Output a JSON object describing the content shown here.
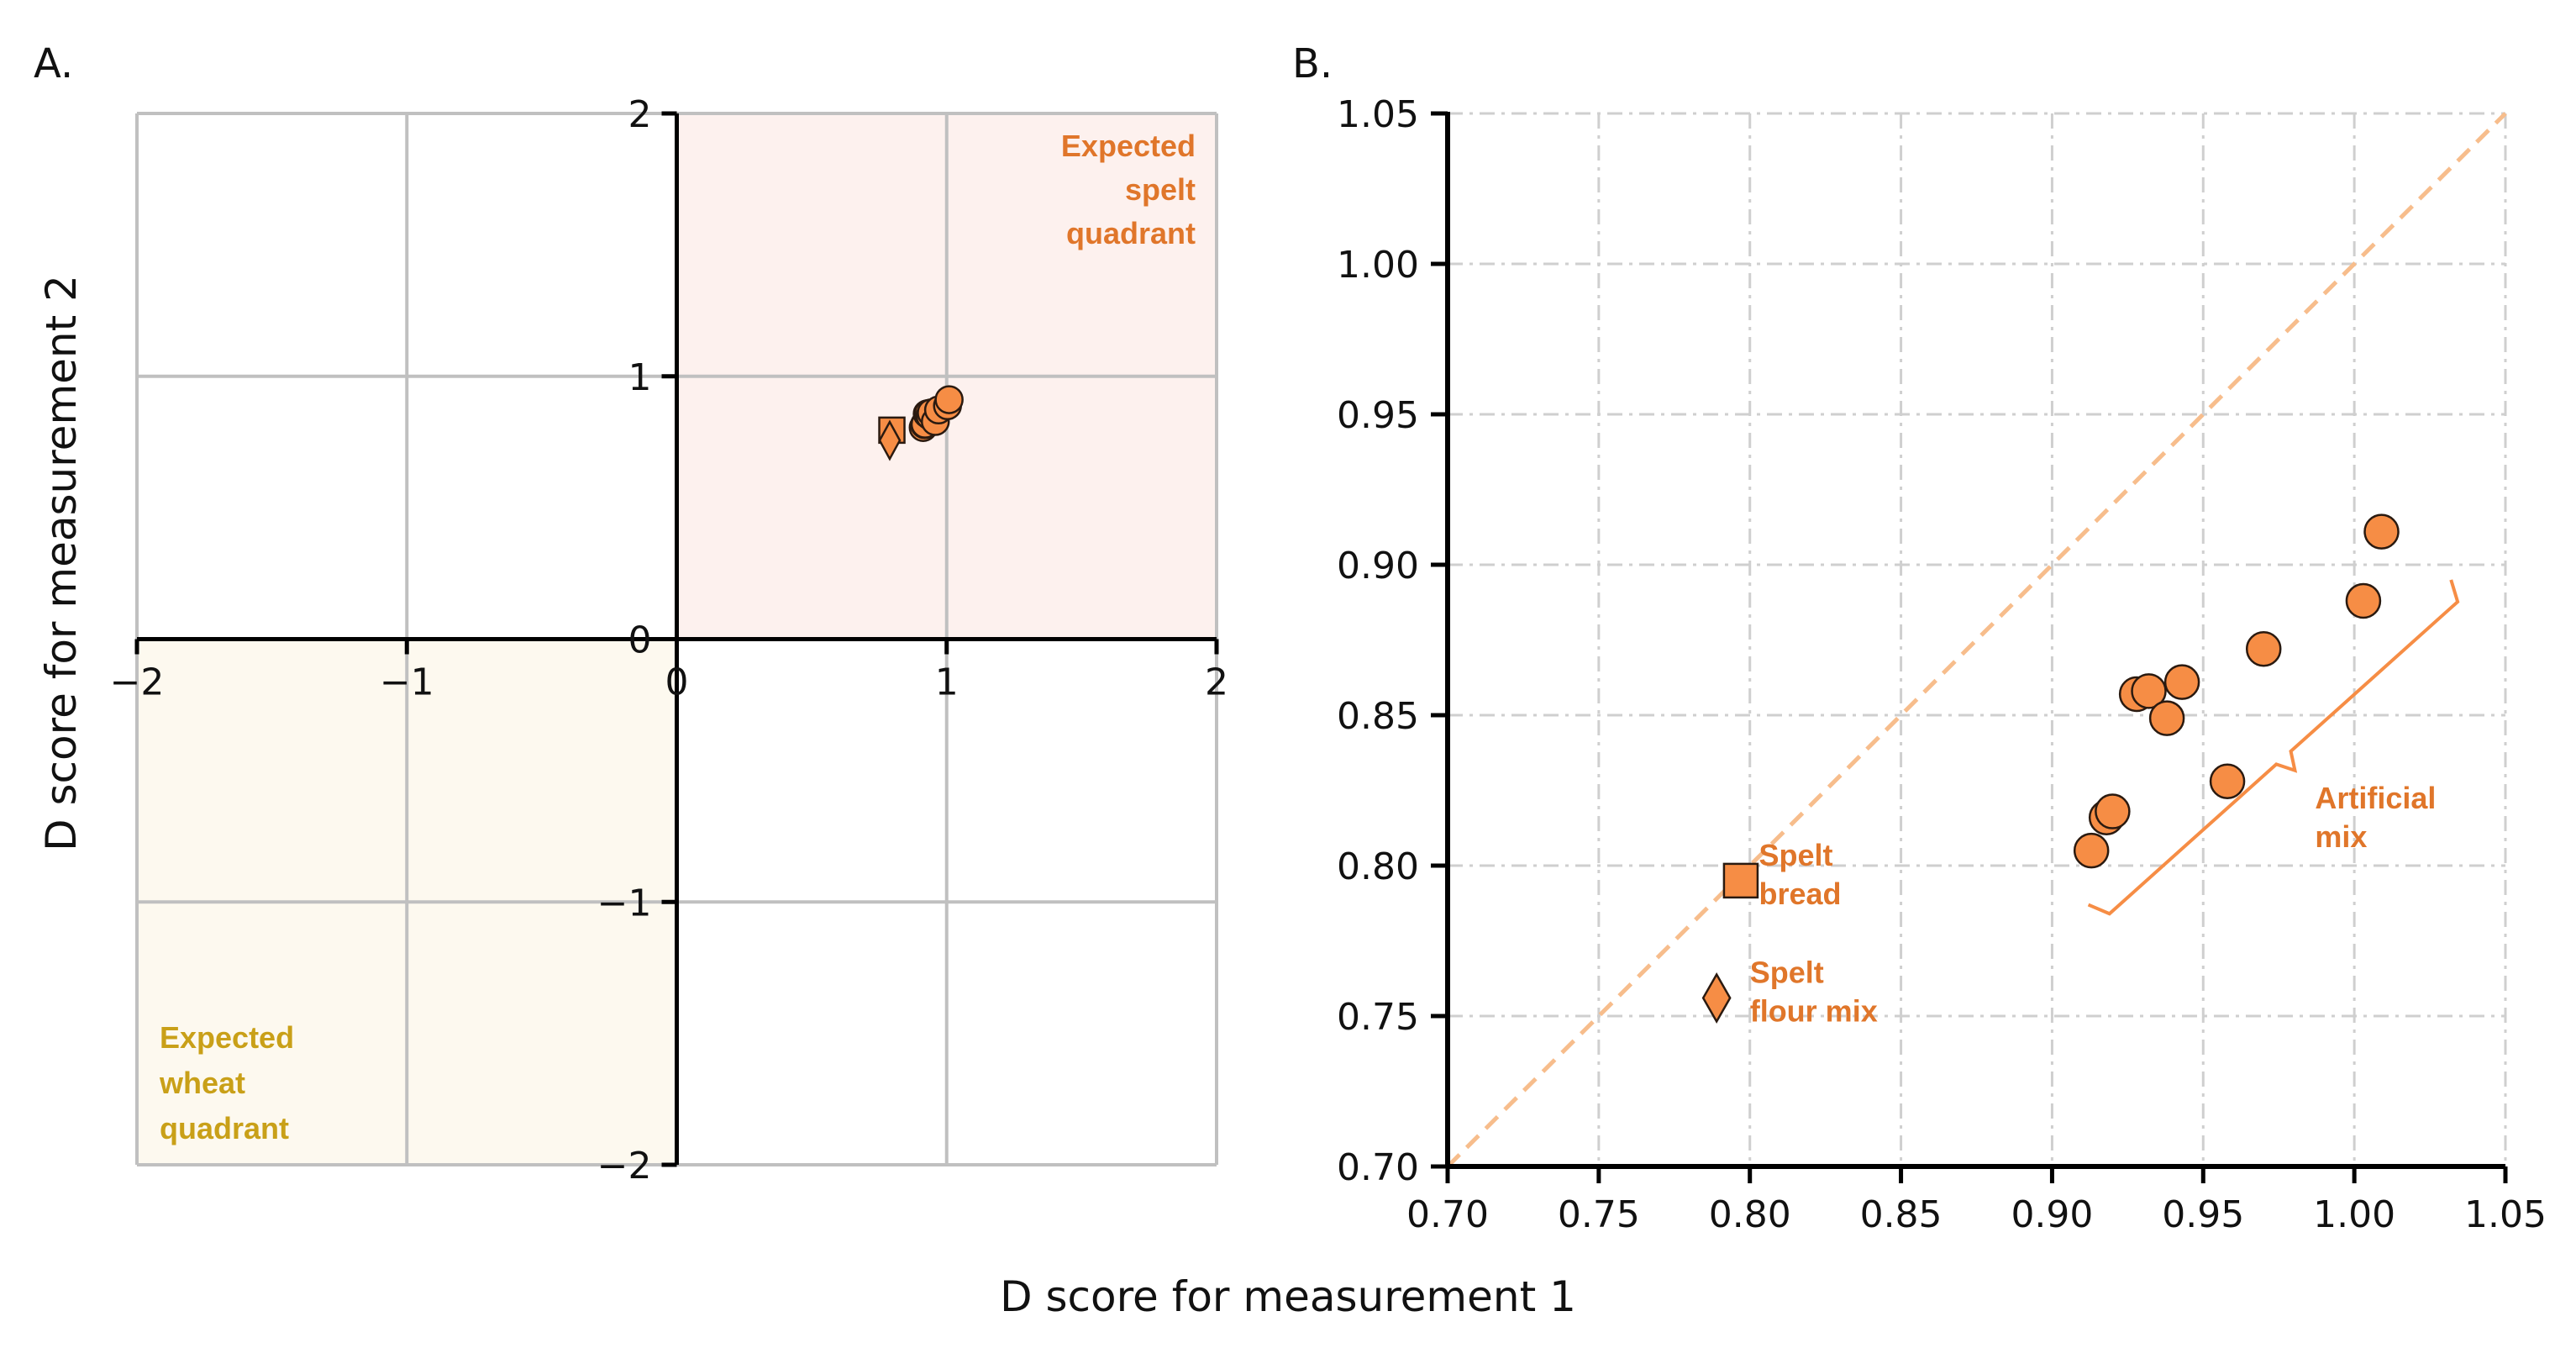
{
  "figure": {
    "xlabel": "D score for measurement 1",
    "ylabel": "D score for measurement 2"
  },
  "colors": {
    "marker_fill": "#F68D45",
    "marker_edge": "#2a1a10",
    "spelt_text": "#E0762A",
    "wheat_text": "#C9A018",
    "spelt_shade": "#FDF1EE",
    "wheat_shade": "#FDF9EF",
    "grid": "#c0c0c0",
    "diagonal": "#F7BD8C"
  },
  "chart_data": [
    {
      "panel": "A.",
      "type": "scatter",
      "xlim": [
        -2,
        2
      ],
      "ylim": [
        -2,
        2
      ],
      "xticks": [
        -2,
        -1,
        0,
        1,
        2
      ],
      "yticks": [
        -2,
        -1,
        0,
        1,
        2
      ],
      "grid": true,
      "quadrants": [
        {
          "name": "spelt",
          "lines": [
            "Expected",
            "spelt",
            "quadrant"
          ],
          "x_range": [
            0,
            2
          ],
          "y_range": [
            0,
            2
          ],
          "label_position": "top-right"
        },
        {
          "name": "wheat",
          "lines": [
            "Expected",
            "wheat",
            "quadrant"
          ],
          "x_range": [
            -2,
            0
          ],
          "y_range": [
            -2,
            0
          ],
          "label_position": "bottom-left"
        }
      ],
      "series": [
        {
          "name": "Spelt bread",
          "marker": "square",
          "points": [
            [
              0.797,
              0.795
            ]
          ]
        },
        {
          "name": "Spelt flour mix",
          "marker": "diamond",
          "points": [
            [
              0.789,
              0.756
            ]
          ]
        },
        {
          "name": "Artificial mix",
          "marker": "circle",
          "points": [
            [
              0.913,
              0.805
            ],
            [
              0.918,
              0.816
            ],
            [
              0.92,
              0.818
            ],
            [
              0.928,
              0.857
            ],
            [
              0.932,
              0.858
            ],
            [
              0.938,
              0.849
            ],
            [
              0.943,
              0.861
            ],
            [
              0.958,
              0.828
            ],
            [
              0.97,
              0.872
            ],
            [
              1.003,
              0.888
            ],
            [
              1.009,
              0.911
            ]
          ]
        }
      ]
    },
    {
      "panel": "B.",
      "type": "scatter",
      "xlim": [
        0.7,
        1.05
      ],
      "ylim": [
        0.7,
        1.05
      ],
      "xticks": [
        "0.70",
        "0.75",
        "0.80",
        "0.85",
        "0.90",
        "0.95",
        "1.00",
        "1.05"
      ],
      "yticks": [
        "0.70",
        "0.75",
        "0.80",
        "0.85",
        "0.90",
        "0.95",
        "1.00",
        "1.05"
      ],
      "grid": true,
      "reference_line": "y = x",
      "annotations": [
        {
          "lines": [
            "Spelt",
            "bread"
          ],
          "x": 0.803,
          "y_top": 0.8
        },
        {
          "lines": [
            "Spelt",
            "flour mix"
          ],
          "x": 0.8,
          "y_top": 0.761
        },
        {
          "lines": [
            "Artificial",
            "mix"
          ],
          "x": 0.987,
          "y_top": 0.819
        }
      ],
      "series": [
        {
          "name": "Spelt bread",
          "marker": "square",
          "points": [
            [
              0.797,
              0.795
            ]
          ]
        },
        {
          "name": "Spelt flour mix",
          "marker": "diamond",
          "points": [
            [
              0.789,
              0.756
            ]
          ]
        },
        {
          "name": "Artificial mix",
          "marker": "circle",
          "points": [
            [
              0.913,
              0.805
            ],
            [
              0.918,
              0.816
            ],
            [
              0.92,
              0.818
            ],
            [
              0.928,
              0.857
            ],
            [
              0.932,
              0.858
            ],
            [
              0.938,
              0.849
            ],
            [
              0.943,
              0.861
            ],
            [
              0.958,
              0.828
            ],
            [
              0.97,
              0.872
            ],
            [
              1.003,
              0.888
            ],
            [
              1.009,
              0.911
            ]
          ]
        }
      ]
    }
  ]
}
